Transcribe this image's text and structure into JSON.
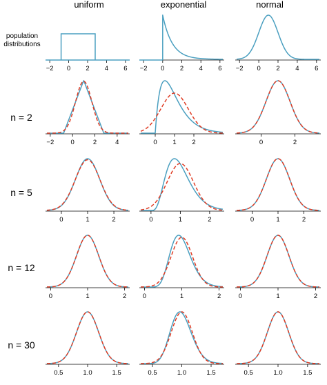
{
  "figure": {
    "column_titles": [
      "uniform",
      "exponential",
      "normal"
    ],
    "row_labels": [
      "population\ndistributions",
      "n = 2",
      "n = 5",
      "n = 12",
      "n = 30"
    ],
    "colors": {
      "curve": "#4a9fc0",
      "normal_approx": "#e03c24"
    }
  },
  "chart_data": [
    {
      "type": "line",
      "row": 0,
      "col": 0,
      "distribution": "uniform",
      "n": null,
      "xlim": [
        -2.3,
        6.3
      ],
      "ticks": [
        -2,
        0,
        2,
        4,
        6
      ],
      "tick_labels": [
        "−2",
        "0",
        "2",
        "4",
        "6"
      ],
      "curve": {
        "shape": "uniform",
        "a": -0.8,
        "b": 2.8
      },
      "show_normal_approx": false
    },
    {
      "type": "line",
      "row": 0,
      "col": 1,
      "distribution": "exponential",
      "n": null,
      "xlim": [
        -2.3,
        6.3
      ],
      "ticks": [
        -2,
        0,
        2,
        4,
        6
      ],
      "tick_labels": [
        "−2",
        "0",
        "2",
        "4",
        "6"
      ],
      "curve": {
        "shape": "exponential",
        "rate": 1
      },
      "show_normal_approx": false
    },
    {
      "type": "line",
      "row": 0,
      "col": 2,
      "distribution": "normal",
      "n": null,
      "xlim": [
        -2.3,
        6.3
      ],
      "ticks": [
        -2,
        0,
        2,
        4,
        6
      ],
      "tick_labels": [
        "−2",
        "0",
        "2",
        "4",
        "6"
      ],
      "curve": {
        "shape": "normal",
        "mean": 1,
        "sd": 1
      },
      "show_normal_approx": false
    },
    {
      "type": "line",
      "row": 1,
      "col": 0,
      "distribution": "uniform",
      "n": 2,
      "xlim": [
        -2.3,
        5.0
      ],
      "ticks": [
        -2,
        0,
        2,
        4
      ],
      "tick_labels": [
        "−2",
        "0",
        "2",
        "4"
      ],
      "curve": {
        "shape": "triangular",
        "min": -0.8,
        "mode": 1.0,
        "max": 2.8
      },
      "normal_approx": {
        "mean": 1.0,
        "sd": 0.73
      },
      "show_normal_approx": true
    },
    {
      "type": "line",
      "row": 1,
      "col": 1,
      "distribution": "exponential",
      "n": 2,
      "xlim": [
        -0.75,
        3.5
      ],
      "ticks": [
        0,
        1,
        2
      ],
      "tick_labels": [
        "0",
        "1",
        "2"
      ],
      "curve": {
        "shape": "gamma",
        "k": 2,
        "scale": 0.5
      },
      "normal_approx": {
        "mean": 1.0,
        "sd": 0.71
      },
      "show_normal_approx": true
    },
    {
      "type": "line",
      "row": 1,
      "col": 2,
      "distribution": "normal",
      "n": 2,
      "xlim": [
        -1.45,
        3.45
      ],
      "ticks": [
        0,
        2
      ],
      "tick_labels": [
        "0",
        "2"
      ],
      "curve": {
        "shape": "normal",
        "mean": 1,
        "sd": 0.71
      },
      "normal_approx": {
        "mean": 1.0,
        "sd": 0.71
      },
      "show_normal_approx": true
    },
    {
      "type": "line",
      "row": 2,
      "col": 0,
      "distribution": "uniform",
      "n": 5,
      "xlim": [
        -0.55,
        2.55
      ],
      "ticks": [
        0,
        1,
        2
      ],
      "tick_labels": [
        "0",
        "1",
        "2"
      ],
      "curve": {
        "shape": "normal",
        "mean": 1,
        "sd": 0.46
      },
      "normal_approx": {
        "mean": 1.0,
        "sd": 0.47
      },
      "show_normal_approx": true
    },
    {
      "type": "line",
      "row": 2,
      "col": 1,
      "distribution": "exponential",
      "n": 5,
      "xlim": [
        -0.35,
        2.45
      ],
      "ticks": [
        0,
        1,
        2
      ],
      "tick_labels": [
        "0",
        "1",
        "2"
      ],
      "curve": {
        "shape": "gamma",
        "k": 5,
        "scale": 0.2
      },
      "normal_approx": {
        "mean": 1.0,
        "sd": 0.45
      },
      "show_normal_approx": true
    },
    {
      "type": "line",
      "row": 2,
      "col": 2,
      "distribution": "normal",
      "n": 5,
      "xlim": [
        -0.6,
        2.6
      ],
      "ticks": [
        0,
        1,
        2
      ],
      "tick_labels": [
        "0",
        "1",
        "2"
      ],
      "curve": {
        "shape": "normal",
        "mean": 1,
        "sd": 0.45
      },
      "normal_approx": {
        "mean": 1.0,
        "sd": 0.45
      },
      "show_normal_approx": true
    },
    {
      "type": "line",
      "row": 3,
      "col": 0,
      "distribution": "uniform",
      "n": 12,
      "xlim": [
        -0.1,
        2.1
      ],
      "ticks": [
        0,
        1,
        2
      ],
      "tick_labels": [
        "0",
        "1",
        "2"
      ],
      "curve": {
        "shape": "normal",
        "mean": 1,
        "sd": 0.3
      },
      "normal_approx": {
        "mean": 1.0,
        "sd": 0.3
      },
      "show_normal_approx": true
    },
    {
      "type": "line",
      "row": 3,
      "col": 1,
      "distribution": "exponential",
      "n": 12,
      "xlim": [
        -0.1,
        2.1
      ],
      "ticks": [
        0,
        1,
        2
      ],
      "tick_labels": [
        "0",
        "1",
        "2"
      ],
      "curve": {
        "shape": "gamma",
        "k": 12,
        "scale": 0.08333
      },
      "normal_approx": {
        "mean": 1.0,
        "sd": 0.29
      },
      "show_normal_approx": true
    },
    {
      "type": "line",
      "row": 3,
      "col": 2,
      "distribution": "normal",
      "n": 12,
      "xlim": [
        -0.1,
        2.1
      ],
      "ticks": [
        0,
        1,
        2
      ],
      "tick_labels": [
        "0",
        "1",
        "2"
      ],
      "curve": {
        "shape": "normal",
        "mean": 1,
        "sd": 0.29
      },
      "normal_approx": {
        "mean": 1.0,
        "sd": 0.29
      },
      "show_normal_approx": true
    },
    {
      "type": "line",
      "row": 4,
      "col": 0,
      "distribution": "uniform",
      "n": 30,
      "xlim": [
        0.3,
        1.7
      ],
      "ticks": [
        0.5,
        1.0,
        1.5
      ],
      "tick_labels": [
        "0.5",
        "1.0",
        "1.5"
      ],
      "curve": {
        "shape": "normal",
        "mean": 1,
        "sd": 0.19
      },
      "normal_approx": {
        "mean": 1.0,
        "sd": 0.19
      },
      "show_normal_approx": true
    },
    {
      "type": "line",
      "row": 4,
      "col": 1,
      "distribution": "exponential",
      "n": 30,
      "xlim": [
        0.3,
        1.7
      ],
      "ticks": [
        0.5,
        1.0,
        1.5
      ],
      "tick_labels": [
        "0.5",
        "1.0",
        "1.5"
      ],
      "curve": {
        "shape": "gamma",
        "k": 30,
        "scale": 0.03333
      },
      "normal_approx": {
        "mean": 1.0,
        "sd": 0.18
      },
      "show_normal_approx": true
    },
    {
      "type": "line",
      "row": 4,
      "col": 2,
      "distribution": "normal",
      "n": 30,
      "xlim": [
        0.3,
        1.7
      ],
      "ticks": [
        0.5,
        1.0,
        1.5
      ],
      "tick_labels": [
        "0.5",
        "1.0",
        "1.5"
      ],
      "curve": {
        "shape": "normal",
        "mean": 1,
        "sd": 0.18
      },
      "normal_approx": {
        "mean": 1.0,
        "sd": 0.18
      },
      "show_normal_approx": true
    }
  ]
}
